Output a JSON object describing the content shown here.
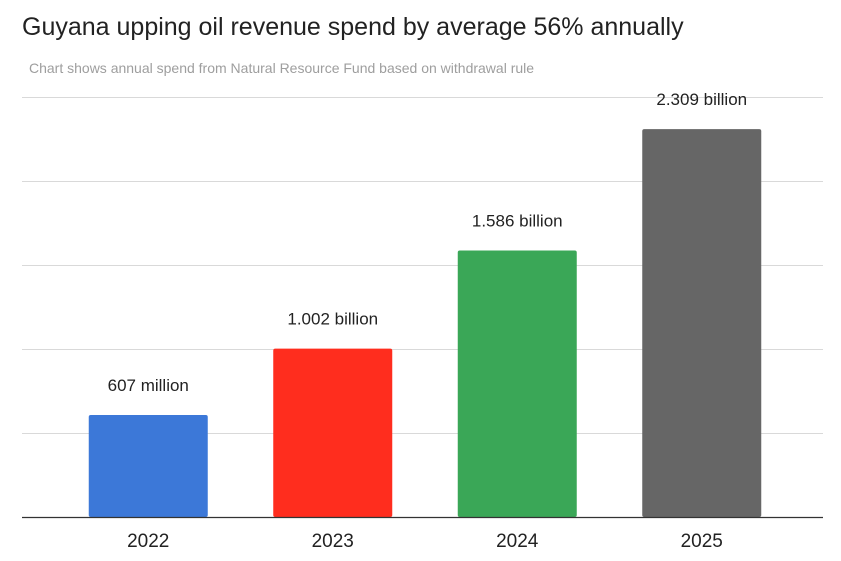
{
  "chart_data": {
    "type": "bar",
    "title": "Guyana upping oil revenue spend by average 56% annually",
    "subtitle": "Chart shows annual spend from Natural Resource Fund based on withdrawal rule",
    "xlabel": "",
    "ylabel": "",
    "categories": [
      "2022",
      "2023",
      "2024",
      "2025"
    ],
    "values": [
      0.607,
      1.002,
      1.586,
      2.309
    ],
    "value_labels": [
      "607 million",
      "1.002 billion",
      "1.586 billion",
      "2.309 billion"
    ],
    "unit": "billion",
    "ylim": [
      0,
      2.5
    ],
    "grid": true,
    "legend": "none",
    "bar_colors": [
      "#3c78d8",
      "#ff2d1e",
      "#3aa757",
      "#666666"
    ],
    "gridline_color": "#d9d9d9",
    "axis_color": "#333333"
  }
}
